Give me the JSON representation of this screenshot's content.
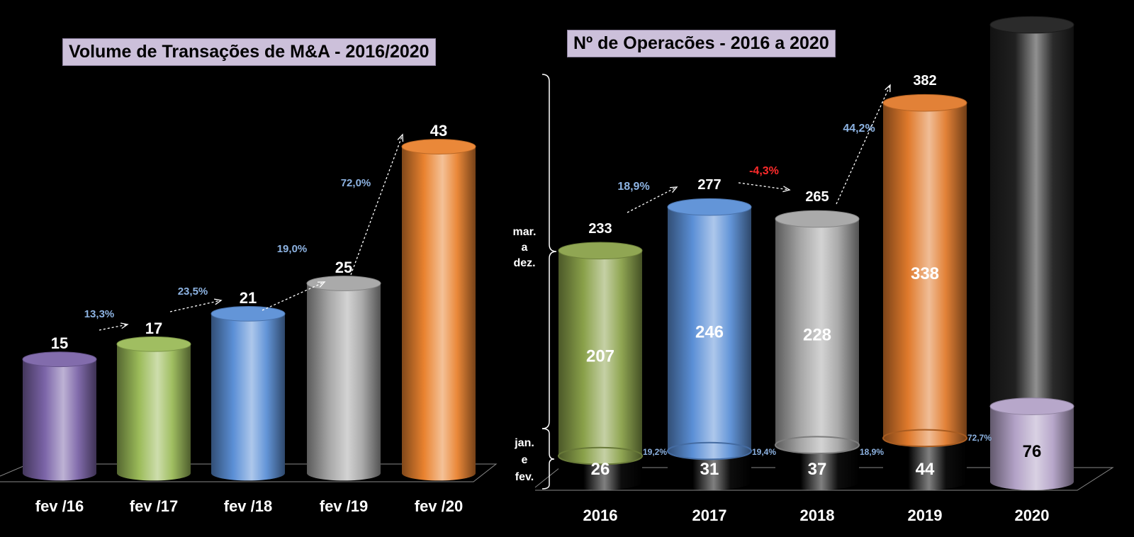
{
  "chart_data": [
    {
      "type": "bar",
      "title": "Volume de Transações de M&A - 2016/2020",
      "categories": [
        "fev /16",
        "fev /17",
        "fev /18",
        "fev /19",
        "fev /20"
      ],
      "values": [
        15,
        17,
        21,
        25,
        43
      ],
      "growth_labels": [
        "13,3%",
        "23,5%",
        "19,0%",
        "72,0%"
      ],
      "colors": [
        "#7b64a8",
        "#9bbb59",
        "#5b8fd6",
        "#a6a6a6",
        "#e9822f"
      ],
      "xlabel": "",
      "ylabel": "",
      "grid": false
    },
    {
      "type": "bar",
      "stacked": true,
      "title": "Nº de Operacões  - 2016 a 2020",
      "categories": [
        "2016",
        "2017",
        "2018",
        "2019",
        "2020"
      ],
      "series": [
        {
          "name": "jan. e fev.",
          "values": [
            26,
            31,
            37,
            44,
            76
          ]
        },
        {
          "name": "mar. a dez.",
          "values": [
            207,
            246,
            228,
            338,
            null
          ]
        }
      ],
      "totals": [
        233,
        277,
        265,
        382,
        null
      ],
      "jan_fev_growth_labels": [
        "19,2%",
        "19,4%",
        "18,9%",
        "72,7%"
      ],
      "total_growth_labels": [
        "18,9%",
        "-4,3%",
        "44,2%"
      ],
      "bracket_labels": {
        "upper": [
          "mar.",
          "a",
          "dez."
        ],
        "lower": [
          "jan.",
          "e",
          "fev."
        ]
      },
      "colors": [
        "#8aa14a",
        "#5b8fd6",
        "#a6a6a6",
        "#e07a2c",
        "#b3a2c7"
      ],
      "negative_color": "#ff2b2b",
      "growth_color": "#8db3e2",
      "xlabel": "",
      "ylabel": "",
      "grid": false
    }
  ]
}
